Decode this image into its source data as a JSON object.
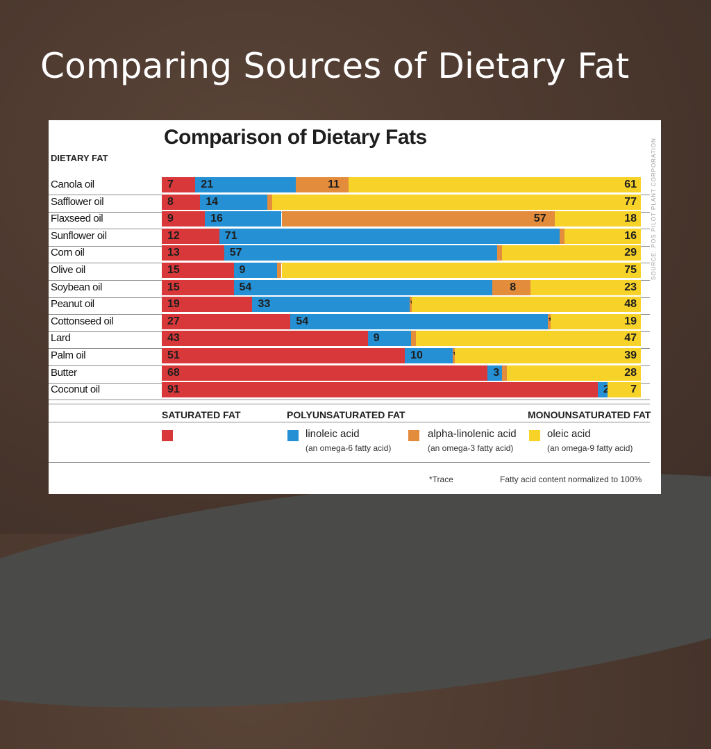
{
  "slide": {
    "title": "Comparing Sources of Dietary Fat"
  },
  "colors": {
    "saturated": "#d9383a",
    "linoleic": "#2590d4",
    "alpha_linolenic": "#e38c3c",
    "oleic": "#f7d329"
  },
  "chart_data": {
    "type": "bar",
    "orientation": "horizontal",
    "stacked": true,
    "title": "Comparison of Dietary Fats",
    "category_header": "DIETARY FAT",
    "categories": [
      "Canola oil",
      "Safflower oil",
      "Flaxseed oil",
      "Sunflower oil",
      "Corn oil",
      "Olive oil",
      "Soybean oil",
      "Peanut oil",
      "Cottonseed oil",
      "Lard",
      "Palm oil",
      "Butter",
      "Coconut oil"
    ],
    "series": [
      {
        "key": "saturated",
        "name": "SATURATED FAT",
        "values": [
          7,
          8,
          9,
          12,
          13,
          15,
          15,
          19,
          27,
          43,
          51,
          68,
          91
        ],
        "labels": [
          "7",
          "8",
          "9",
          "12",
          "13",
          "15",
          "15",
          "19",
          "27",
          "43",
          "51",
          "68",
          "91"
        ]
      },
      {
        "key": "linoleic",
        "name": "linoleic acid",
        "values": [
          21,
          14,
          16,
          71,
          57,
          9,
          54,
          33,
          54,
          9,
          10,
          3,
          2
        ],
        "labels": [
          "21",
          "14",
          "16",
          "71",
          "57",
          "9",
          "54",
          "33",
          "54",
          "9",
          "10",
          "3",
          "2"
        ]
      },
      {
        "key": "alpha_linolenic",
        "name": "alpha-linolenic acid",
        "values": [
          11,
          1,
          57,
          1,
          1,
          1,
          8,
          0.5,
          0.5,
          1,
          0.5,
          1,
          0
        ],
        "labels": [
          "11",
          "1",
          "57",
          "1",
          "1",
          "1",
          "8",
          "*",
          "*",
          "1",
          "*",
          "1",
          ""
        ]
      },
      {
        "key": "oleic",
        "name": "oleic acid",
        "values": [
          61,
          77,
          18,
          16,
          29,
          75,
          23,
          48,
          19,
          47,
          39,
          28,
          7
        ],
        "labels": [
          "61",
          "77",
          "18",
          "16",
          "29",
          "75",
          "23",
          "48",
          "19",
          "47",
          "39",
          "28",
          "7"
        ]
      }
    ],
    "xlim": [
      0,
      100
    ],
    "legend": {
      "groups": [
        "SATURATED FAT",
        "POLYUNSATURATED FAT",
        "MONOUNSATURATED FAT"
      ],
      "items": [
        {
          "key": "saturated",
          "label": "",
          "sub": ""
        },
        {
          "key": "linoleic",
          "label": "linoleic acid",
          "sub": "(an omega-6 fatty acid)"
        },
        {
          "key": "alpha_linolenic",
          "label": "alpha-linolenic acid",
          "sub": "(an omega-3 fatty acid)"
        },
        {
          "key": "oleic",
          "label": "oleic acid",
          "sub": "(an omega-9 fatty acid)"
        }
      ]
    },
    "footnotes": {
      "trace": "*Trace",
      "normalized": "Fatty acid content normalized to 100%"
    },
    "source": "SOURCE: POS PILOT PLANT CORPORATION"
  }
}
